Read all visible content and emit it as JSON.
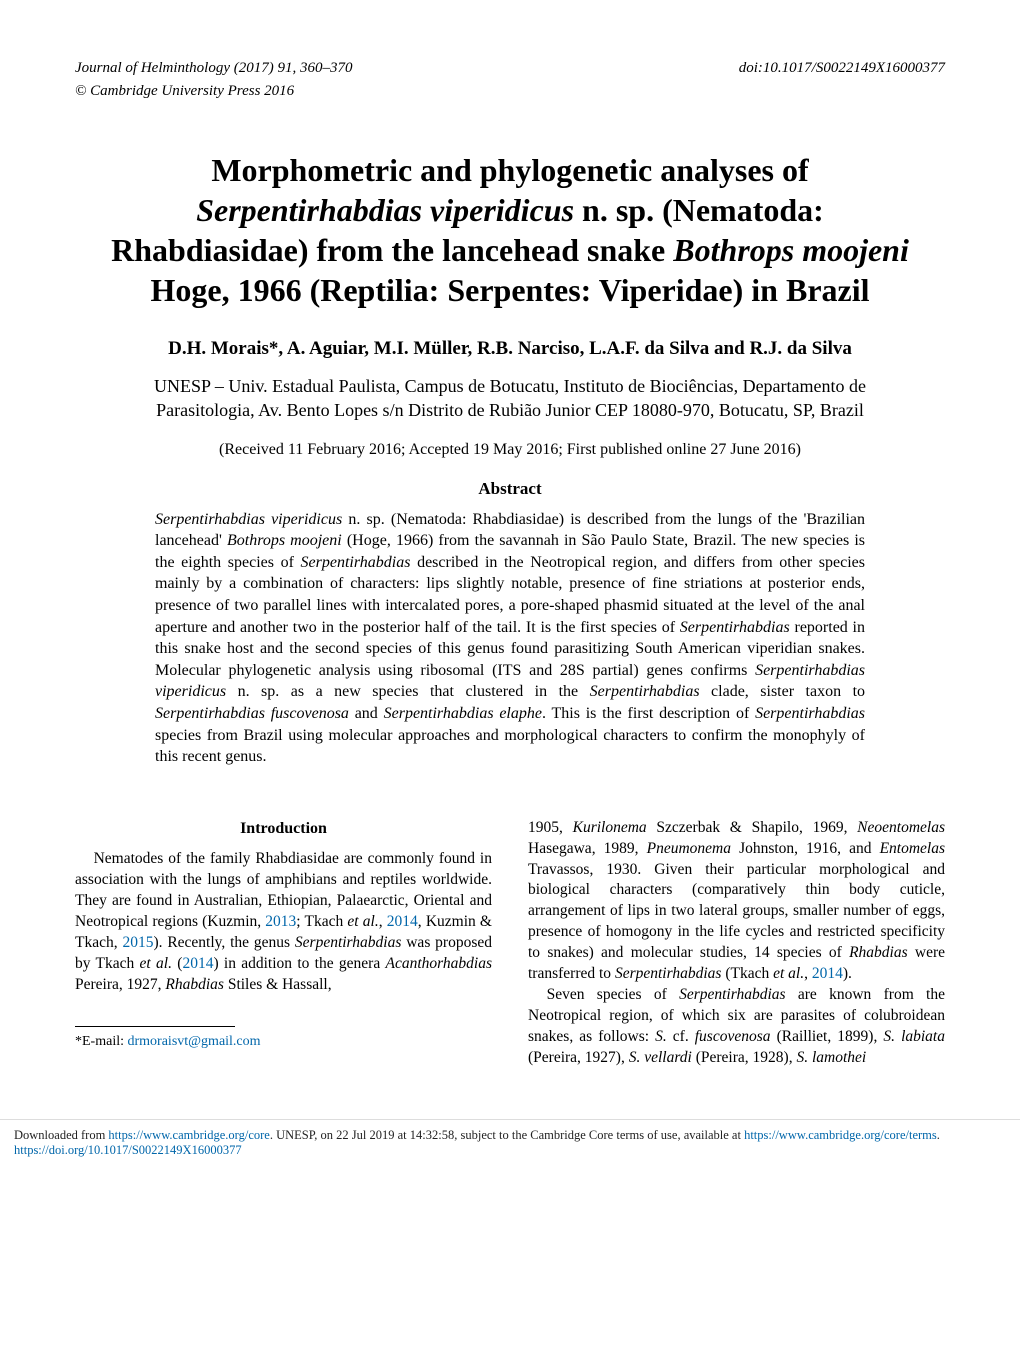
{
  "header": {
    "journal_line": "Journal of Helminthology (2017) 91, 360–370",
    "doi": "doi:10.1017/S0022149X16000377",
    "copyright": "© Cambridge University Press 2016"
  },
  "title": {
    "pre1": "Morphometric and phylogenetic analyses of ",
    "ital1": "Serpentirhabdias viperidicus",
    "post1": " n. sp. (Nematoda: Rhabdiasidae) from the lancehead snake ",
    "ital2": "Bothrops moojeni",
    "post2": " Hoge, 1966 (Reptilia: Serpentes: Viperidae) in Brazil"
  },
  "authors": "D.H. Morais*, A. Aguiar, M.I. Müller, R.B. Narciso, L.A.F. da Silva and R.J. da Silva",
  "affiliation": "UNESP – Univ. Estadual Paulista, Campus de Botucatu, Instituto de Biociências, Departamento de Parasitologia, Av. Bento Lopes s/n Distrito de Rubião Junior CEP 18080-970, Botucatu, SP, Brazil",
  "received": "(Received 11 February 2016; Accepted 19 May 2016; First published online 27 June 2016)",
  "abstract_heading": "Abstract",
  "abstract": {
    "s1_ital": "Serpentirhabdias viperidicus",
    "s1_rest": " n. sp. (Nematoda: Rhabdiasidae) is described from the lungs of the 'Brazilian lancehead' ",
    "s2_ital": "Bothrops moojeni",
    "s2_rest": " (Hoge, 1966) from the savannah in São Paulo State, Brazil. The new species is the eighth species of ",
    "s3_ital": "Serpentirhabdias",
    "s3_rest": " described in the Neotropical region, and differs from other species mainly by a combination of characters: lips slightly notable, presence of fine striations at posterior ends, presence of two parallel lines with intercalated pores, a pore-shaped phasmid situated at the level of the anal aperture and another two in the posterior half of the tail. It is the first species of ",
    "s4_ital": "Serpentirhabdias",
    "s4_rest": " reported in this snake host and the second species of this genus found parasitizing South American viperidian snakes. Molecular phylogenetic analysis using ribosomal (ITS and 28S partial) genes confirms ",
    "s5_ital": "Serpentirhabdias viperidicus",
    "s5_rest": " n. sp. as a new species that clustered in the ",
    "s6_ital": "Serpentirhabdias",
    "s6_rest": " clade, sister taxon to ",
    "s7_ital": "Serpentirhabdias fuscovenosa",
    "s7_rest": " and ",
    "s8_ital": "Serpentirhabdias elaphe",
    "s8_rest": ". This is the first description of ",
    "s9_ital": "Serpentirhabdias",
    "s9_rest": " species from Brazil using molecular approaches and morphological characters to confirm the monophyly of this recent genus."
  },
  "intro_heading": "Introduction",
  "intro_left": {
    "p1a": "Nematodes of the family Rhabdiasidae are commonly found in association with the lungs of amphibians and reptiles worldwide. They are found in Australian, Ethiopian, Palaearctic, Oriental and Neotropical regions (Kuzmin, ",
    "p1_link1": "2013",
    "p1b": "; Tkach ",
    "p1_ital1": "et al.",
    "p1c": ", ",
    "p1_link2": "2014",
    "p1d": ", Kuzmin & Tkach, ",
    "p1_link3": "2015",
    "p1e": "). Recently, the genus ",
    "p1_ital2": "Serpentirhabdias",
    "p1f": " was proposed by Tkach ",
    "p1_ital3": "et al.",
    "p1g": " (",
    "p1_link4": "2014",
    "p1h": ") in addition to the genera ",
    "p1_ital4": "Acanthorhabdias",
    "p1i": " Pereira, 1927, ",
    "p1_ital5": "Rhabdias",
    "p1j": " Stiles & Hassall,"
  },
  "intro_right": {
    "p1a": "1905, ",
    "p1_ital1": "Kurilonema",
    "p1b": " Szczerbak & Shapilo, 1969, ",
    "p1_ital2": "Neoentomelas",
    "p1c": " Hasegawa, 1989, ",
    "p1_ital3": "Pneumonema",
    "p1d": " Johnston, 1916, and ",
    "p1_ital4": "Entomelas",
    "p1e": " Travassos, 1930. Given their particular morphological and biological characters (comparatively thin body cuticle, arrangement of lips in two lateral groups, smaller number of eggs, presence of homogony in the life cycles and restricted specificity to snakes) and molecular studies, 14 species of ",
    "p1_ital5": "Rhabdias",
    "p1f": " were transferred to ",
    "p1_ital6": "Serpentirhabdias",
    "p1g": " (Tkach ",
    "p1_ital7": "et al.",
    "p1h": ", ",
    "p1_link1": "2014",
    "p1i": ").",
    "p2a": "Seven species of ",
    "p2_ital1": "Serpentirhabdias",
    "p2b": " are known from the Neotropical region, of which six are parasites of colubroidean snakes, as follows: ",
    "p2_ital2": "S.",
    "p2c": " cf. ",
    "p2_ital3": "fuscovenosa",
    "p2d": " (Railliet, 1899), ",
    "p2_ital4": "S. labiata",
    "p2e": " (Pereira, 1927), ",
    "p2_ital5": "S. vellardi",
    "p2f": " (Pereira, 1928), ",
    "p2_ital6": "S. lamothei"
  },
  "footnote": {
    "label": "*E-mail: ",
    "email": "drmoraisvt@gmail.com"
  },
  "footer": {
    "line1a": "Downloaded from ",
    "url1": "https://www.cambridge.org/core",
    "line1b": ". UNESP, on 22 Jul 2019 at 14:32:58, subject to the Cambridge Core terms of use, available at ",
    "url2": "https://www.cambridge.org/core/terms",
    "line1c": ".",
    "url3": "https://doi.org/10.1017/S0022149X16000377"
  }
}
